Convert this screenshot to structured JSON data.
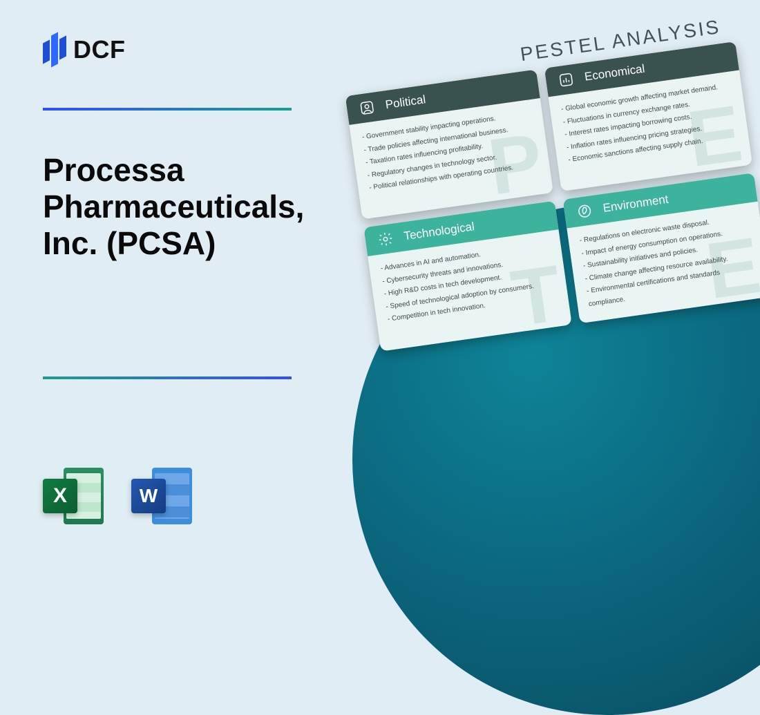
{
  "logo": {
    "text": "DCF"
  },
  "title": "Processa Pharmaceuticals, Inc. (PCSA)",
  "apps": {
    "excel_letter": "X",
    "word_letter": "W"
  },
  "pestel": {
    "heading": "PESTEL ANALYSIS",
    "cards": [
      {
        "title": "Political",
        "letter": "P",
        "style": "dark",
        "icon": "user",
        "items": [
          "- Government stability impacting operations.",
          "- Trade policies affecting international business.",
          "- Taxation rates influencing profitability.",
          "- Regulatory changes in technology sector.",
          "- Political relationships with operating countries."
        ]
      },
      {
        "title": "Economical",
        "letter": "E",
        "style": "dark",
        "icon": "chart",
        "items": [
          "- Global economic growth affecting market demand.",
          "- Fluctuations in currency exchange rates.",
          "- Interest rates impacting borrowing costs.",
          "- Inflation rates influencing pricing strategies.",
          "- Economic sanctions affecting supply chain."
        ]
      },
      {
        "title": "Technological",
        "letter": "T",
        "style": "teal",
        "icon": "gear",
        "items": [
          "- Advances in AI and automation.",
          "- Cybersecurity threats and innovations.",
          "- High R&D costs in tech development.",
          "- Speed of technological adoption by consumers.",
          "- Competition in tech innovation."
        ]
      },
      {
        "title": "Environment",
        "letter": "E",
        "style": "teal",
        "icon": "leaf",
        "items": [
          "- Regulations on electronic waste disposal.",
          "- Impact of energy consumption on operations.",
          "- Sustainability initiatives and policies.",
          "- Climate change affecting resource availability.",
          "- Environmental certifications and standards compliance."
        ]
      }
    ]
  },
  "colors": {
    "page_bg": "#e1edf4",
    "accent_blue": "#2d4fff",
    "accent_teal": "#1c9e8e",
    "card_dark": "#3a524f",
    "card_teal": "#3db39e",
    "circle_from": "#0e8498",
    "circle_to": "#084a5e"
  }
}
